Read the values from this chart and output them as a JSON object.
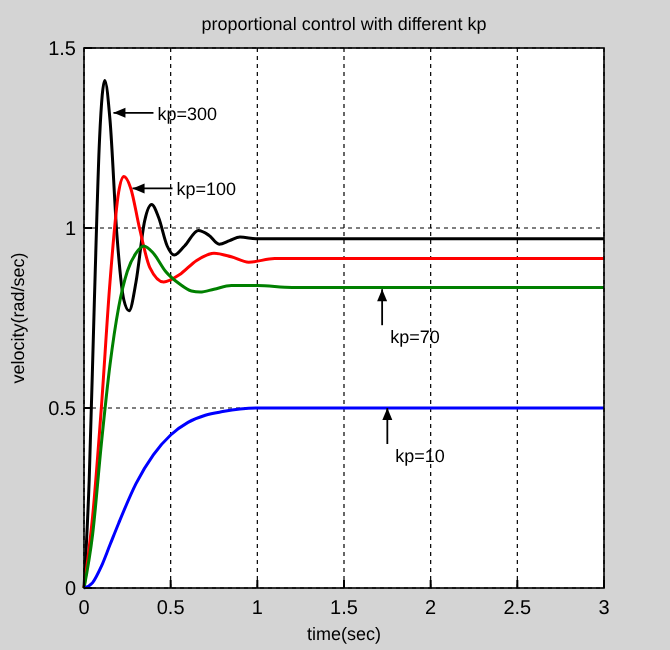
{
  "chart_data": {
    "type": "line",
    "title": "proportional control with different kp",
    "xlabel": "time(sec)",
    "ylabel": "velocity(rad/sec)",
    "xlim": [
      0,
      3
    ],
    "ylim": [
      0,
      1.5
    ],
    "xticks": [
      0,
      0.5,
      1,
      1.5,
      2,
      2.5,
      3
    ],
    "yticks": [
      0,
      0.5,
      1,
      1.5
    ],
    "grid": true,
    "marker": "none",
    "line_style": "solid",
    "series": [
      {
        "color": "#000000",
        "x": [
          0,
          0.03,
          0.06,
          0.09,
          0.12,
          0.15,
          0.19,
          0.23,
          0.26,
          0.3,
          0.35,
          0.39,
          0.43,
          0.48,
          0.52,
          0.58,
          0.66,
          0.72,
          0.78,
          0.84,
          0.9,
          1,
          3
        ],
        "values": [
          0,
          0.3,
          0.8,
          1.25,
          1.41,
          1.3,
          0.98,
          0.8,
          0.77,
          0.85,
          1.02,
          1.065,
          1.03,
          0.95,
          0.925,
          0.95,
          0.993,
          0.98,
          0.955,
          0.965,
          0.975,
          0.97,
          0.97
        ]
      },
      {
        "color": "#ff0000",
        "x": [
          0,
          0.05,
          0.1,
          0.15,
          0.2,
          0.23,
          0.27,
          0.32,
          0.38,
          0.46,
          0.55,
          0.65,
          0.75,
          0.85,
          0.95,
          1.1,
          3
        ],
        "values": [
          0,
          0.2,
          0.5,
          0.85,
          1.1,
          1.143,
          1.11,
          1,
          0.89,
          0.85,
          0.87,
          0.91,
          0.93,
          0.92,
          0.905,
          0.915,
          0.915
        ]
      },
      {
        "color": "#008000",
        "x": [
          0,
          0.05,
          0.1,
          0.15,
          0.2,
          0.25,
          0.3,
          0.345,
          0.4,
          0.47,
          0.55,
          0.62,
          0.67,
          0.75,
          0.85,
          1,
          1.2,
          3
        ],
        "values": [
          0,
          0.15,
          0.4,
          0.62,
          0.78,
          0.88,
          0.93,
          0.95,
          0.93,
          0.88,
          0.845,
          0.825,
          0.822,
          0.83,
          0.84,
          0.84,
          0.835,
          0.835
        ]
      },
      {
        "color": "#0000ff",
        "x": [
          0,
          0.05,
          0.1,
          0.15,
          0.2,
          0.3,
          0.4,
          0.5,
          0.6,
          0.7,
          0.8,
          0.9,
          1,
          3
        ],
        "values": [
          0,
          0.015,
          0.06,
          0.12,
          0.18,
          0.29,
          0.37,
          0.425,
          0.46,
          0.48,
          0.49,
          0.497,
          0.5,
          0.5
        ]
      }
    ],
    "annotations": [
      {
        "text": "kp=300",
        "x": 0.17,
        "y": 1.32
      },
      {
        "text": "kp=100",
        "x": 0.28,
        "y": 1.11
      },
      {
        "text": "kp=70",
        "x": 1.72,
        "y": 0.83
      },
      {
        "text": "kp=10",
        "x": 1.75,
        "y": 0.5
      }
    ]
  }
}
